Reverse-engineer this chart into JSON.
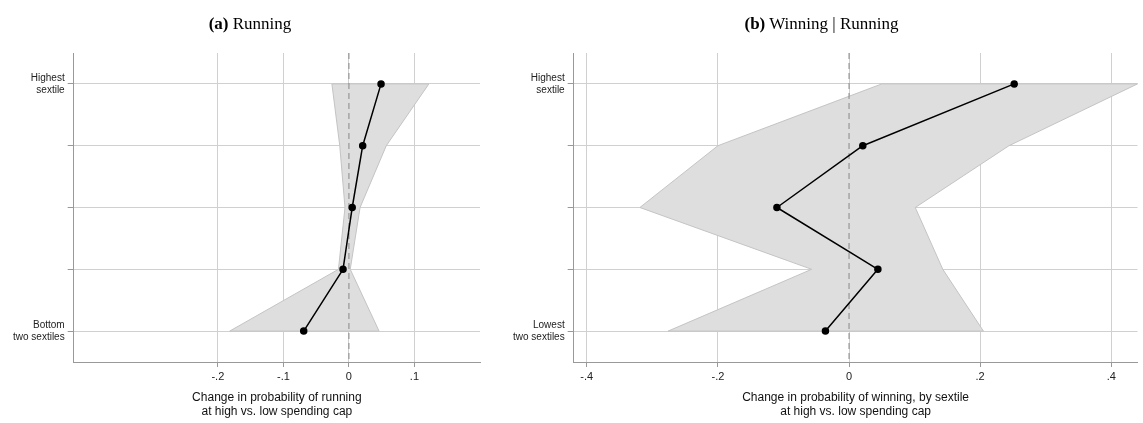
{
  "chart_data": [
    {
      "type": "line",
      "title": "(a) Running",
      "xlabel": "Change in probability of running\nat high vs. low spending cap",
      "categories": [
        "Highest sextile",
        null,
        null,
        null,
        "Bottom two sextiles"
      ],
      "series": [
        {
          "color": "#000000",
          "values": [
            0.049,
            0.021,
            0.005,
            -0.009,
            -0.069
          ],
          "lower": [
            -0.026,
            -0.014,
            -0.006,
            -0.016,
            -0.182
          ],
          "upper": [
            0.122,
            0.057,
            0.017,
            0.002,
            0.046
          ]
        }
      ],
      "xlim": [
        -0.42,
        0.2
      ],
      "xticks": [
        {
          "value": -0.2,
          "label": "-.2"
        },
        {
          "value": -0.1,
          "label": "-.1"
        },
        {
          "value": 0,
          "label": "0"
        },
        {
          "value": 0.1,
          "label": ".1"
        }
      ],
      "grid": true,
      "marker": "circle",
      "line_style": "solid",
      "orientation": "horizontal",
      "ref_lines": [
        {
          "axis": "x",
          "value": 0,
          "line_style": "dashed",
          "color": "#888888"
        }
      ]
    },
    {
      "type": "line",
      "title": "(b) Winning | Running",
      "xlabel": "Change in probability of winning, by sextile\nat high vs. low spending cap",
      "categories": [
        "Highest sextile",
        null,
        null,
        null,
        "Lowest two sextiles"
      ],
      "series": [
        {
          "color": "#000000",
          "values": [
            0.252,
            0.021,
            -0.11,
            0.044,
            -0.036
          ],
          "lower": [
            0.05,
            -0.2,
            -0.319,
            -0.057,
            -0.276
          ],
          "upper": [
            0.44,
            0.244,
            0.101,
            0.143,
            0.205
          ]
        }
      ],
      "xlim": [
        -0.42,
        0.44
      ],
      "xticks": [
        {
          "value": -0.4,
          "label": "-.4"
        },
        {
          "value": -0.2,
          "label": "-.2"
        },
        {
          "value": 0,
          "label": "0"
        },
        {
          "value": 0.2,
          "label": ".2"
        },
        {
          "value": 0.4,
          "label": ".4"
        }
      ],
      "grid": true,
      "marker": "circle",
      "line_style": "solid",
      "orientation": "horizontal",
      "ref_lines": [
        {
          "axis": "x",
          "value": 0,
          "line_style": "dashed",
          "color": "#888888"
        }
      ]
    }
  ]
}
